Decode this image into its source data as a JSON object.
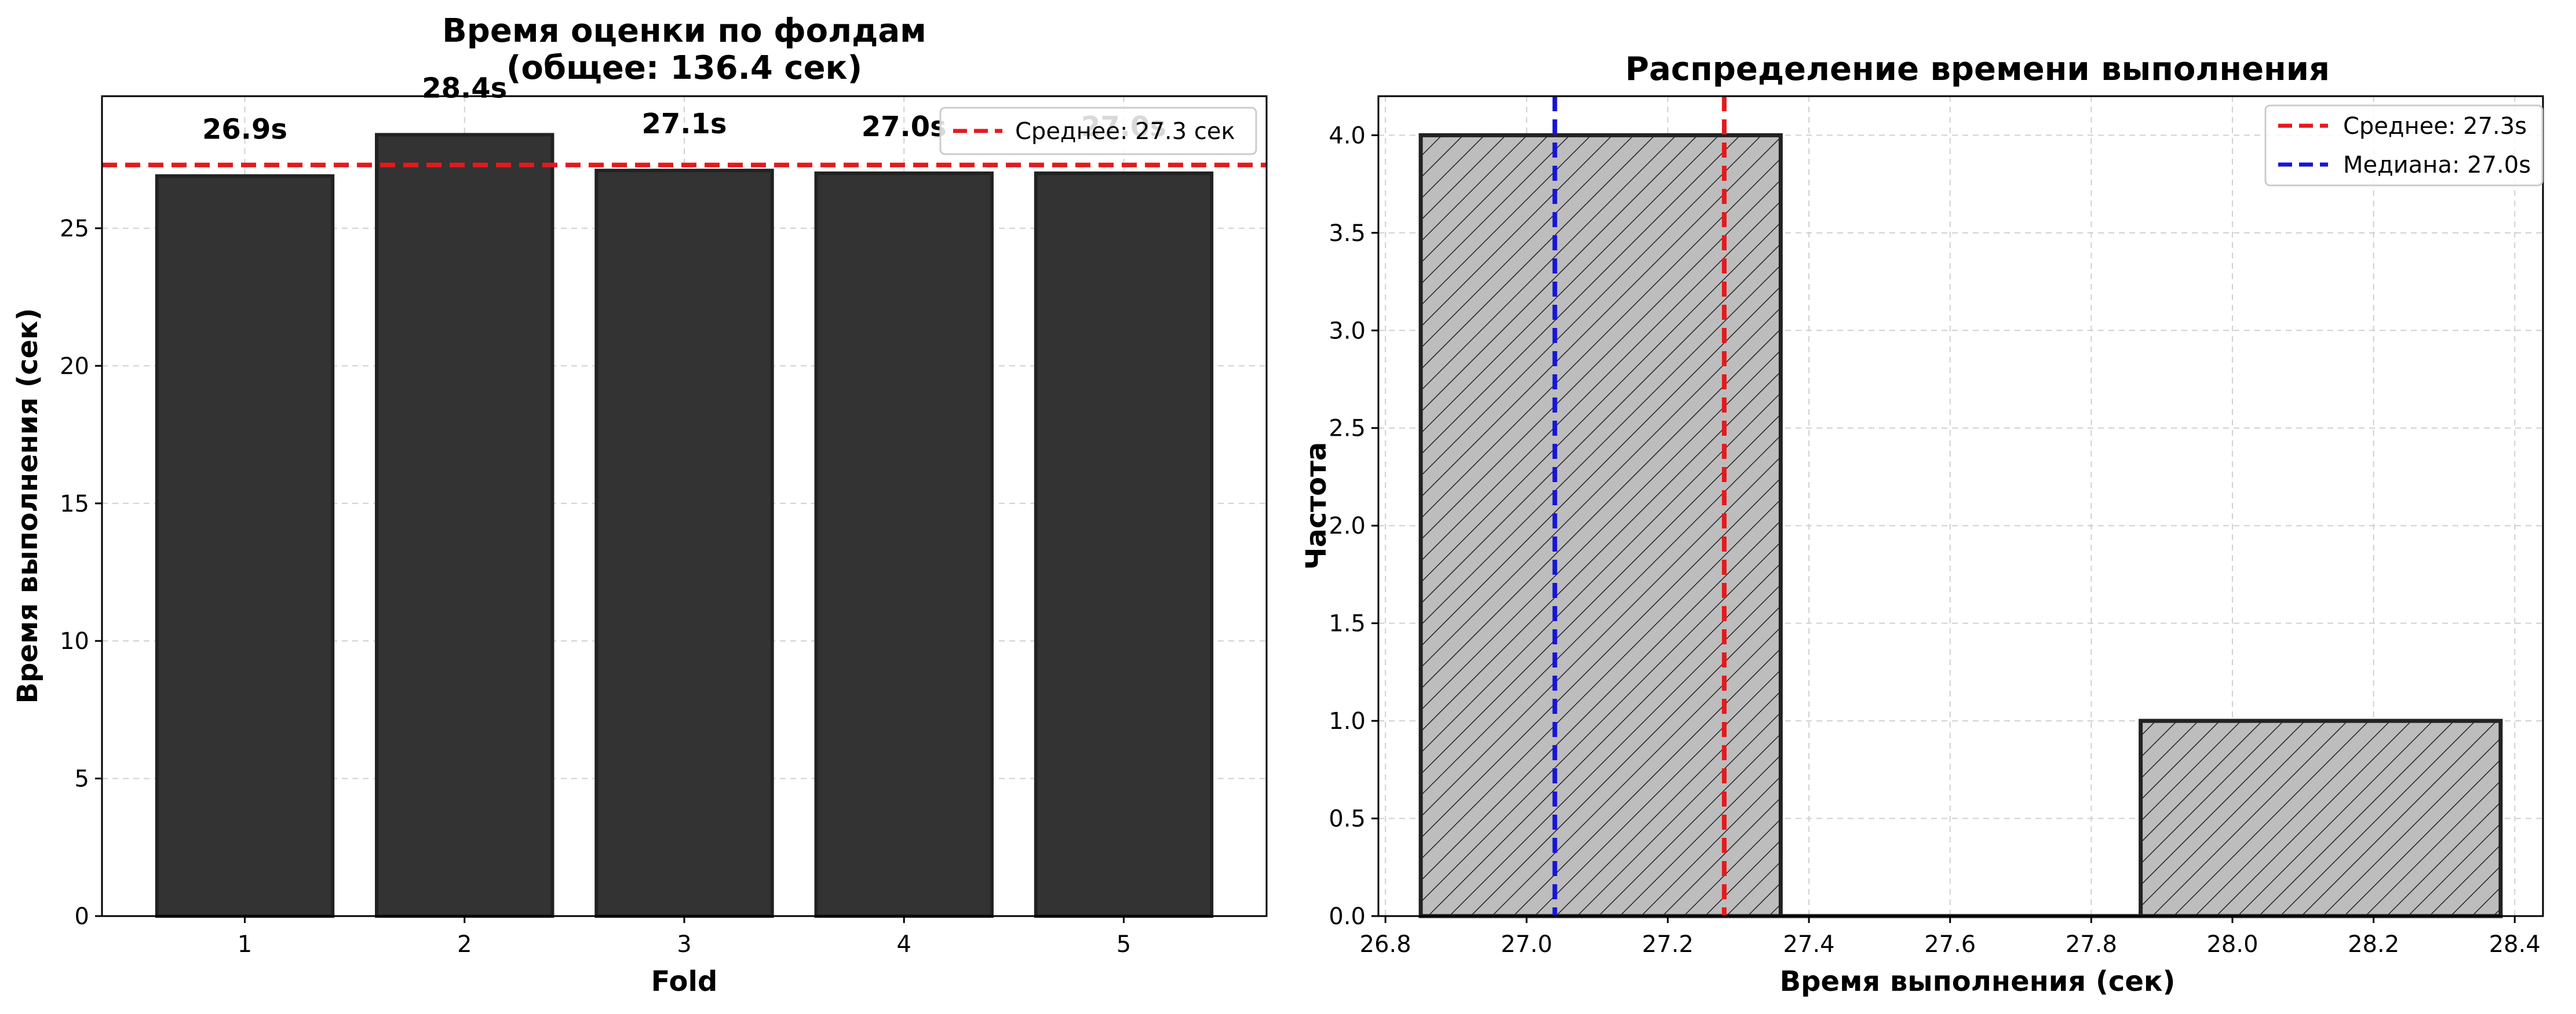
{
  "colors": {
    "bar_fill": "#333333",
    "hist_fill": "#bdbdbd",
    "edge": "#222222",
    "mean_line": "#e41a1c",
    "median_line": "#1515d6",
    "grid": "#d0d0d0"
  },
  "chart_data": [
    {
      "type": "bar",
      "title": "Время оценки по фолдам\n(общее: 136.4 сек)",
      "xlabel": "Fold",
      "ylabel": "Время выполнения (сек)",
      "categories": [
        "1",
        "2",
        "3",
        "4",
        "5"
      ],
      "values": [
        26.9,
        28.4,
        27.1,
        27.0,
        27.0
      ],
      "data_labels": [
        "26.9s",
        "28.4s",
        "27.1s",
        "27.0s",
        "27.0s"
      ],
      "ylim": [
        0,
        29.8
      ],
      "yticks": [
        0,
        5,
        10,
        15,
        20,
        25
      ],
      "grid": true,
      "reference_line": {
        "value": 27.3,
        "label": "Среднее: 27.3 сек"
      },
      "legend_placement": "upper right"
    },
    {
      "type": "bar",
      "title": "Распределение времени выполнения",
      "xlabel": "Время выполнения (сек)",
      "ylabel": "Частота",
      "bins": [
        {
          "start": 26.85,
          "end": 27.36,
          "count": 4
        },
        {
          "start": 27.36,
          "end": 27.87,
          "count": 0
        },
        {
          "start": 27.87,
          "end": 28.38,
          "count": 1
        }
      ],
      "xlim": [
        26.79,
        28.44
      ],
      "ylim": [
        0,
        4.2
      ],
      "xticks": [
        "26.8",
        "27.0",
        "27.2",
        "27.4",
        "27.6",
        "27.8",
        "28.0",
        "28.2",
        "28.4"
      ],
      "yticks": [
        "0.0",
        "0.5",
        "1.0",
        "1.5",
        "2.0",
        "2.5",
        "3.0",
        "3.5",
        "4.0"
      ],
      "grid": true,
      "reference_lines": [
        {
          "value": 27.28,
          "label": "Среднее: 27.3s",
          "role": "mean"
        },
        {
          "value": 27.04,
          "label": "Медиана: 27.0s",
          "role": "median"
        }
      ],
      "legend_placement": "upper right"
    }
  ]
}
